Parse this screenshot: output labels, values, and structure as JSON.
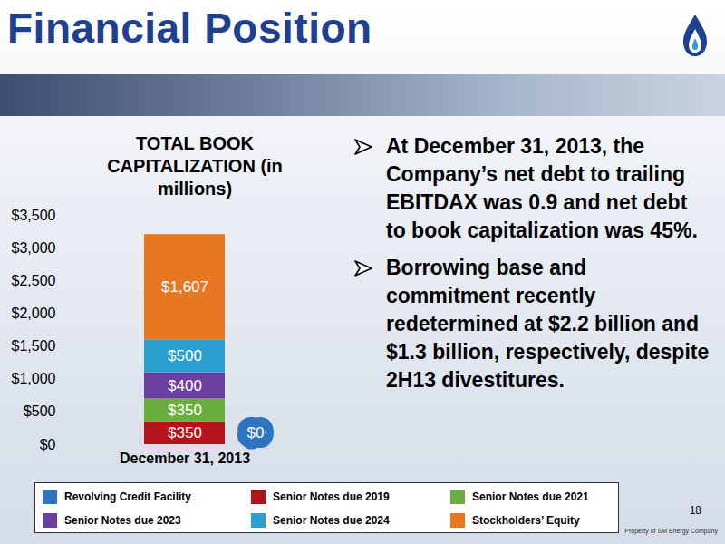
{
  "slide": {
    "title": "Financial Position",
    "bullets": [
      "At December 31, 2013, the Company’s net debt to trailing EBITDAX was 0.9 and net debt to book capitalization was 45%.",
      "Borrowing base and commitment  recently redetermined at $2.2 billion and $1.3 billion, respectively, despite 2H13 divestitures."
    ],
    "page_number": "18",
    "footer": "Property of SM Energy Company"
  },
  "chart_data": {
    "type": "bar",
    "stacked": true,
    "data_labels": true,
    "grid": false,
    "legend": "bottom",
    "title": "TOTAL BOOK CAPITALIZATION (in millions)",
    "categories": [
      "December 31, 2013"
    ],
    "series": [
      {
        "name": "Revolving Credit Facility",
        "color": "#2f74c0",
        "values": [
          0
        ],
        "value_labels": [
          "$0"
        ]
      },
      {
        "name": "Senior Notes due 2019",
        "color": "#b5121b",
        "values": [
          350
        ],
        "value_labels": [
          "$350"
        ]
      },
      {
        "name": "Senior Notes due 2021",
        "color": "#6aaf3d",
        "values": [
          350
        ],
        "value_labels": [
          "$350"
        ]
      },
      {
        "name": "Senior Notes due 2023",
        "color": "#6b3fa0",
        "values": [
          400
        ],
        "value_labels": [
          "$400"
        ]
      },
      {
        "name": "Senior Notes due 2024",
        "color": "#2b9fcf",
        "values": [
          500
        ],
        "value_labels": [
          "$500"
        ]
      },
      {
        "name": "Stockholders’ Equity",
        "color": "#e87722",
        "values": [
          1607
        ],
        "value_labels": [
          "$1,607"
        ]
      }
    ],
    "ylim": [
      0,
      3500
    ],
    "yticks": [
      {
        "value": 0,
        "label": "$0"
      },
      {
        "value": 500,
        "label": "$500"
      },
      {
        "value": 1000,
        "label": "$1,000"
      },
      {
        "value": 1500,
        "label": "$1,500"
      },
      {
        "value": 2000,
        "label": "$2,000"
      },
      {
        "value": 2500,
        "label": "$2,500"
      },
      {
        "value": 3000,
        "label": "$3,000"
      },
      {
        "value": 3500,
        "label": "$3,500"
      }
    ]
  }
}
